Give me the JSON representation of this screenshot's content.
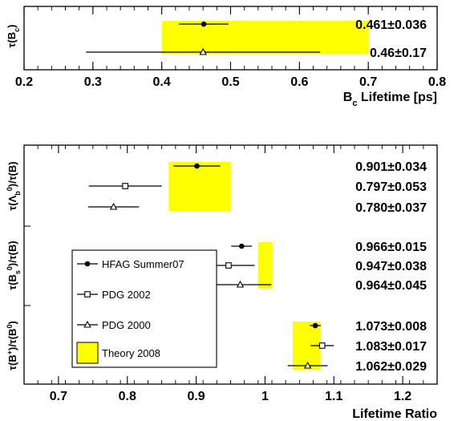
{
  "chart_data": [
    {
      "type": "scatter",
      "xlabel_main": "B",
      "xlabel_sub": "c",
      "xlabel_rest": " Lifetime [ps]",
      "xlim": [
        0.2,
        0.8
      ],
      "xticks": [
        "0.2",
        "0.3",
        "0.4",
        "0.5",
        "0.6",
        "0.7",
        "0.8"
      ],
      "rows": [
        {
          "label_main": "τ(B",
          "label_sub": "c",
          "label_end": ")",
          "theory": [
            0.4,
            0.7
          ],
          "points": [
            {
              "series": "HFAG Summer07",
              "x": 0.461,
              "xerr": 0.036,
              "text": "0.461±0.036"
            },
            {
              "series": "PDG 2000",
              "x": 0.46,
              "xerr": 0.17,
              "text": "0.46±0.17"
            }
          ]
        }
      ]
    },
    {
      "type": "scatter",
      "xlabel": "Lifetime Ratio",
      "xlim": [
        0.65,
        1.25
      ],
      "xticks": [
        "0.7",
        "0.8",
        "0.9",
        "1",
        "1.1",
        "1.2"
      ],
      "rows": [
        {
          "label_main": "τ(Λ",
          "label_sub": "b",
          "label_end": ")/τ(B",
          "label_sup": "0",
          "label_close": ")",
          "theory": [
            0.86,
            0.95
          ],
          "points": [
            {
              "series": "HFAG Summer07",
              "x": 0.901,
              "xerr": 0.034,
              "text": "0.901±0.034"
            },
            {
              "series": "PDG 2002",
              "x": 0.797,
              "xerr": 0.053,
              "text": "0.797±0.053"
            },
            {
              "series": "PDG 2000",
              "x": 0.78,
              "xerr": 0.037,
              "text": "0.780±0.037"
            }
          ]
        },
        {
          "label_main": "τ(B",
          "label_sub": "s",
          "label_end": ")/τ(B",
          "label_sup": "0",
          "label_close": ")",
          "theory": [
            0.99,
            1.01
          ],
          "points": [
            {
              "series": "HFAG Summer07",
              "x": 0.966,
              "xerr": 0.015,
              "text": "0.966±0.015"
            },
            {
              "series": "PDG 2002",
              "x": 0.947,
              "xerr": 0.038,
              "text": "0.947±0.038"
            },
            {
              "series": "PDG 2000",
              "x": 0.964,
              "xerr": 0.045,
              "text": "0.964±0.045"
            }
          ]
        },
        {
          "label_main": "τ(B",
          "label_sup": "+",
          "label_end": ")/τ(B",
          "label_sup2": "0",
          "label_close": ")",
          "theory": [
            1.04,
            1.08
          ],
          "points": [
            {
              "series": "HFAG Summer07",
              "x": 1.073,
              "xerr": 0.008,
              "text": "1.073±0.008"
            },
            {
              "series": "PDG 2002",
              "x": 1.083,
              "xerr": 0.017,
              "text": "1.083±0.017"
            },
            {
              "series": "PDG 2000",
              "x": 1.062,
              "xerr": 0.029,
              "text": "1.062±0.029"
            }
          ]
        }
      ],
      "legend": [
        {
          "label": "HFAG Summer07",
          "marker": "filled-circle"
        },
        {
          "label": "PDG 2002",
          "marker": "open-square"
        },
        {
          "label": "PDG 2000",
          "marker": "open-triangle"
        },
        {
          "label": "Theory 2008",
          "marker": "yellow-box"
        }
      ],
      "legend_position": "left"
    }
  ],
  "colors": {
    "theory": "#ffff00",
    "ink": "#000000"
  }
}
